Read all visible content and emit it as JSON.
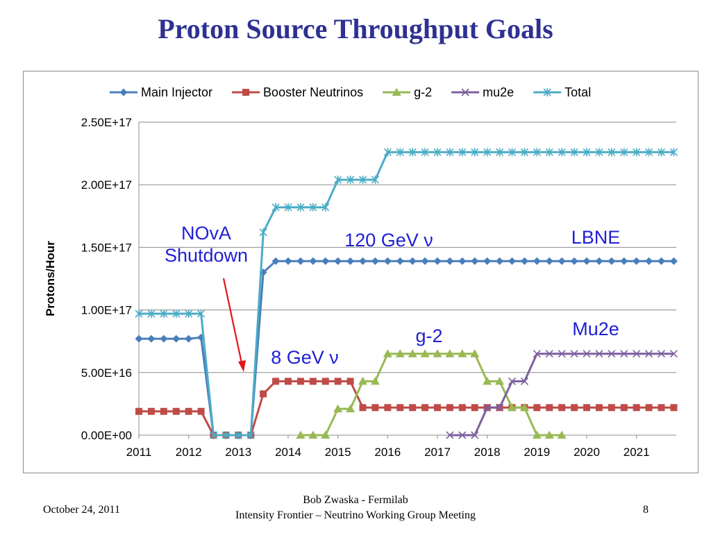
{
  "slide": {
    "title": "Proton Source Throughput Goals",
    "footer_date": "October 24, 2011",
    "footer_author": "Bob Zwaska - Fermilab",
    "footer_meeting": "Intensity Frontier – Neutrino Working Group Meeting",
    "page_number": "8"
  },
  "chart_data": {
    "type": "line",
    "ylabel": "Protons/Hour",
    "xlabel": "",
    "xlim": [
      2011,
      2021.8
    ],
    "ylim": [
      0,
      2.5e+17
    ],
    "x_ticks": [
      "2011",
      "2012",
      "2013",
      "2014",
      "2015",
      "2016",
      "2017",
      "2018",
      "2019",
      "2020",
      "2021"
    ],
    "y_ticks": [
      "0.00E+00",
      "5.00E+16",
      "1.00E+17",
      "1.50E+17",
      "2.00E+17",
      "2.50E+17"
    ],
    "grid": true,
    "legend": "top",
    "series": [
      {
        "name": "Main Injector",
        "color": "#4a7ebb",
        "marker": "diamond",
        "points": [
          [
            2011,
            7.7e+16
          ],
          [
            2011.25,
            7.7e+16
          ],
          [
            2011.5,
            7.7e+16
          ],
          [
            2011.75,
            7.7e+16
          ],
          [
            2012,
            7.7e+16
          ],
          [
            2012.25,
            7.8e+16
          ],
          [
            2012.5,
            0
          ],
          [
            2012.75,
            0
          ],
          [
            2013,
            0
          ],
          [
            2013.25,
            0
          ],
          [
            2013.5,
            1.3e+17
          ],
          [
            2013.75,
            1.39e+17
          ],
          [
            2014,
            1.39e+17
          ],
          [
            2014.25,
            1.39e+17
          ],
          [
            2014.5,
            1.39e+17
          ],
          [
            2014.75,
            1.39e+17
          ],
          [
            2015,
            1.39e+17
          ],
          [
            2015.25,
            1.39e+17
          ],
          [
            2015.5,
            1.39e+17
          ],
          [
            2015.75,
            1.39e+17
          ],
          [
            2016,
            1.39e+17
          ],
          [
            2016.25,
            1.39e+17
          ],
          [
            2016.5,
            1.39e+17
          ],
          [
            2016.75,
            1.39e+17
          ],
          [
            2017,
            1.39e+17
          ],
          [
            2017.25,
            1.39e+17
          ],
          [
            2017.5,
            1.39e+17
          ],
          [
            2017.75,
            1.39e+17
          ],
          [
            2018,
            1.39e+17
          ],
          [
            2018.25,
            1.39e+17
          ],
          [
            2018.5,
            1.39e+17
          ],
          [
            2018.75,
            1.39e+17
          ],
          [
            2019,
            1.39e+17
          ],
          [
            2019.25,
            1.39e+17
          ],
          [
            2019.5,
            1.39e+17
          ],
          [
            2019.75,
            1.39e+17
          ],
          [
            2020,
            1.39e+17
          ],
          [
            2020.25,
            1.39e+17
          ],
          [
            2020.5,
            1.39e+17
          ],
          [
            2020.75,
            1.39e+17
          ],
          [
            2021,
            1.39e+17
          ],
          [
            2021.25,
            1.39e+17
          ],
          [
            2021.5,
            1.39e+17
          ],
          [
            2021.75,
            1.39e+17
          ]
        ]
      },
      {
        "name": "Booster Neutrinos",
        "color": "#be4b48",
        "marker": "square",
        "points": [
          [
            2011,
            1.9e+16
          ],
          [
            2011.25,
            1.9e+16
          ],
          [
            2011.5,
            1.9e+16
          ],
          [
            2011.75,
            1.9e+16
          ],
          [
            2012,
            1.9e+16
          ],
          [
            2012.25,
            1.9e+16
          ],
          [
            2012.5,
            0
          ],
          [
            2012.75,
            0
          ],
          [
            2013,
            0
          ],
          [
            2013.25,
            0
          ],
          [
            2013.5,
            3.3e+16
          ],
          [
            2013.75,
            4.3e+16
          ],
          [
            2014,
            4.3e+16
          ],
          [
            2014.25,
            4.3e+16
          ],
          [
            2014.5,
            4.3e+16
          ],
          [
            2014.75,
            4.3e+16
          ],
          [
            2015,
            4.3e+16
          ],
          [
            2015.25,
            4.3e+16
          ],
          [
            2015.5,
            2.2e+16
          ],
          [
            2015.75,
            2.2e+16
          ],
          [
            2016,
            2.2e+16
          ],
          [
            2016.25,
            2.2e+16
          ],
          [
            2016.5,
            2.2e+16
          ],
          [
            2016.75,
            2.2e+16
          ],
          [
            2017,
            2.2e+16
          ],
          [
            2017.25,
            2.2e+16
          ],
          [
            2017.5,
            2.2e+16
          ],
          [
            2017.75,
            2.2e+16
          ],
          [
            2018,
            2.2e+16
          ],
          [
            2018.25,
            2.2e+16
          ],
          [
            2018.5,
            2.2e+16
          ],
          [
            2018.75,
            2.2e+16
          ],
          [
            2019,
            2.2e+16
          ],
          [
            2019.25,
            2.2e+16
          ],
          [
            2019.5,
            2.2e+16
          ],
          [
            2019.75,
            2.2e+16
          ],
          [
            2020,
            2.2e+16
          ],
          [
            2020.25,
            2.2e+16
          ],
          [
            2020.5,
            2.2e+16
          ],
          [
            2020.75,
            2.2e+16
          ],
          [
            2021,
            2.2e+16
          ],
          [
            2021.25,
            2.2e+16
          ],
          [
            2021.5,
            2.2e+16
          ],
          [
            2021.75,
            2.2e+16
          ]
        ]
      },
      {
        "name": "g-2",
        "color": "#98b954",
        "marker": "triangle",
        "points": [
          [
            2014.25,
            0
          ],
          [
            2014.5,
            0
          ],
          [
            2014.75,
            0
          ],
          [
            2015,
            2.1e+16
          ],
          [
            2015.25,
            2.1e+16
          ],
          [
            2015.5,
            4.3e+16
          ],
          [
            2015.75,
            4.3e+16
          ],
          [
            2016,
            6.5e+16
          ],
          [
            2016.25,
            6.5e+16
          ],
          [
            2016.5,
            6.5e+16
          ],
          [
            2016.75,
            6.5e+16
          ],
          [
            2017,
            6.5e+16
          ],
          [
            2017.25,
            6.5e+16
          ],
          [
            2017.5,
            6.5e+16
          ],
          [
            2017.75,
            6.5e+16
          ],
          [
            2018,
            4.3e+16
          ],
          [
            2018.25,
            4.3e+16
          ],
          [
            2018.5,
            2.2e+16
          ],
          [
            2018.75,
            2.2e+16
          ],
          [
            2019,
            0
          ],
          [
            2019.25,
            0
          ],
          [
            2019.5,
            0
          ]
        ]
      },
      {
        "name": "mu2e",
        "color": "#7d60a0",
        "marker": "x",
        "points": [
          [
            2017.25,
            0
          ],
          [
            2017.5,
            0
          ],
          [
            2017.75,
            0
          ],
          [
            2018,
            2.2e+16
          ],
          [
            2018.25,
            2.2e+16
          ],
          [
            2018.5,
            4.3e+16
          ],
          [
            2018.75,
            4.3e+16
          ],
          [
            2019,
            6.5e+16
          ],
          [
            2019.25,
            6.5e+16
          ],
          [
            2019.5,
            6.5e+16
          ],
          [
            2019.75,
            6.5e+16
          ],
          [
            2020,
            6.5e+16
          ],
          [
            2020.25,
            6.5e+16
          ],
          [
            2020.5,
            6.5e+16
          ],
          [
            2020.75,
            6.5e+16
          ],
          [
            2021,
            6.5e+16
          ],
          [
            2021.25,
            6.5e+16
          ],
          [
            2021.5,
            6.5e+16
          ],
          [
            2021.75,
            6.5e+16
          ]
        ]
      },
      {
        "name": "Total",
        "color": "#4bacc6",
        "marker": "asterisk",
        "points": [
          [
            2011,
            9.7e+16
          ],
          [
            2011.25,
            9.7e+16
          ],
          [
            2011.5,
            9.7e+16
          ],
          [
            2011.75,
            9.7e+16
          ],
          [
            2012,
            9.7e+16
          ],
          [
            2012.25,
            9.7e+16
          ],
          [
            2012.5,
            0
          ],
          [
            2012.75,
            0
          ],
          [
            2013,
            0
          ],
          [
            2013.25,
            0
          ],
          [
            2013.5,
            1.62e+17
          ],
          [
            2013.75,
            1.82e+17
          ],
          [
            2014,
            1.82e+17
          ],
          [
            2014.25,
            1.82e+17
          ],
          [
            2014.5,
            1.82e+17
          ],
          [
            2014.75,
            1.82e+17
          ],
          [
            2015,
            2.04e+17
          ],
          [
            2015.25,
            2.04e+17
          ],
          [
            2015.5,
            2.04e+17
          ],
          [
            2015.75,
            2.04e+17
          ],
          [
            2016,
            2.26e+17
          ],
          [
            2016.25,
            2.26e+17
          ],
          [
            2016.5,
            2.26e+17
          ],
          [
            2016.75,
            2.26e+17
          ],
          [
            2017,
            2.26e+17
          ],
          [
            2017.25,
            2.26e+17
          ],
          [
            2017.5,
            2.26e+17
          ],
          [
            2017.75,
            2.26e+17
          ],
          [
            2018,
            2.26e+17
          ],
          [
            2018.25,
            2.26e+17
          ],
          [
            2018.5,
            2.26e+17
          ],
          [
            2018.75,
            2.26e+17
          ],
          [
            2019,
            2.26e+17
          ],
          [
            2019.25,
            2.26e+17
          ],
          [
            2019.5,
            2.26e+17
          ],
          [
            2019.75,
            2.26e+17
          ],
          [
            2020,
            2.26e+17
          ],
          [
            2020.25,
            2.26e+17
          ],
          [
            2020.5,
            2.26e+17
          ],
          [
            2020.75,
            2.26e+17
          ],
          [
            2021,
            2.26e+17
          ],
          [
            2021.25,
            2.26e+17
          ],
          [
            2021.5,
            2.26e+17
          ],
          [
            2021.75,
            2.26e+17
          ]
        ]
      }
    ],
    "annotations": [
      {
        "id": "nova",
        "lines": [
          "NOvA",
          "Shutdown"
        ],
        "color": "#1f1fd6"
      },
      {
        "id": "mi120",
        "lines": [
          "120 GeV ν"
        ],
        "color": "#1f1fd6"
      },
      {
        "id": "lbne",
        "lines": [
          "LBNE"
        ],
        "color": "#1f1fd6"
      },
      {
        "id": "g2",
        "lines": [
          "g-2"
        ],
        "color": "#1f1fd6"
      },
      {
        "id": "mu2e",
        "lines": [
          "Mu2e"
        ],
        "color": "#1f1fd6"
      },
      {
        "id": "bn8",
        "lines": [
          "8 GeV ν"
        ],
        "color": "#1f1fd6"
      }
    ],
    "arrow_color": "#e3141b"
  }
}
